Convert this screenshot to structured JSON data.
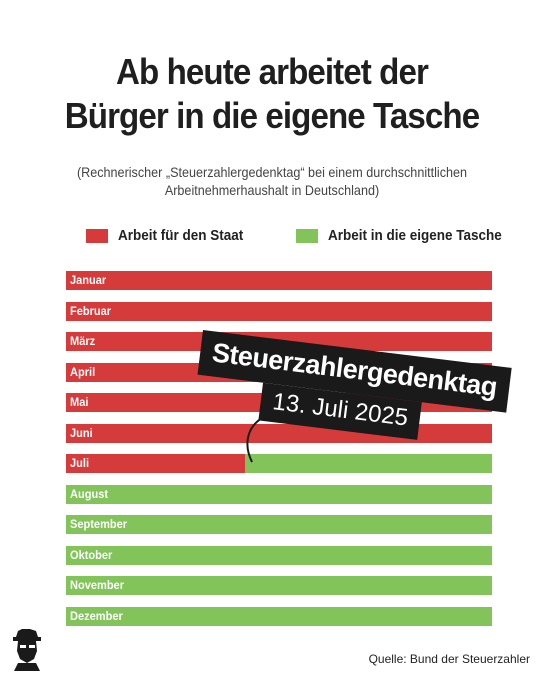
{
  "title_lines": [
    "Ab heute arbeitet der",
    "Bürger in die eigene Tasche"
  ],
  "subtitle": "(Rechnerischer „Steuerzahlergedenktag“ bei einem durchschnittlichen Arbeitnehmerhaushalt in Deutschland)",
  "legend": [
    {
      "label": "Arbeit für den Staat",
      "color": "#d63b3b"
    },
    {
      "label": "Arbeit in die eigene Tasche",
      "color": "#82c35a"
    }
  ],
  "callout": {
    "title": "Steuerzahlergedenktag",
    "date": "13. Juli 2025"
  },
  "source": "Quelle: Bund der Steuerzahler",
  "chart_data": {
    "type": "bar",
    "orientation": "horizontal",
    "stacked": true,
    "categories": [
      "Januar",
      "Februar",
      "März",
      "April",
      "Mai",
      "Juni",
      "Juli",
      "August",
      "September",
      "Oktober",
      "November",
      "Dezember"
    ],
    "series": [
      {
        "name": "Arbeit für den Staat",
        "color": "#d63b3b",
        "values": [
          1,
          1,
          1,
          1,
          1,
          1,
          0.42,
          0,
          0,
          0,
          0,
          0
        ]
      },
      {
        "name": "Arbeit in die eigene Tasche",
        "color": "#82c35a",
        "values": [
          0,
          0,
          0,
          0,
          0,
          0,
          0.58,
          1,
          1,
          1,
          1,
          1
        ]
      }
    ],
    "annotation": {
      "text": "Steuerzahlergedenktag 13. Juli 2025",
      "category": "Juli"
    }
  }
}
